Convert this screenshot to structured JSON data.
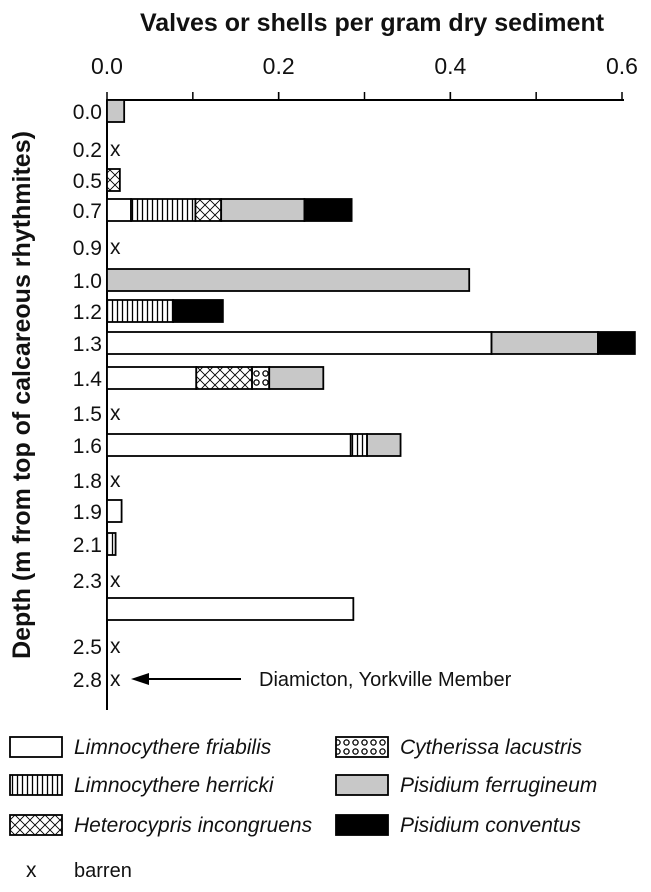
{
  "chart_data": {
    "type": "bar",
    "stacked": true,
    "orientation": "horizontal",
    "title": "Valves or shells per gram dry sediment",
    "ylabel": "Depth (m from top of calcareous rhythmites)",
    "xlim": [
      0,
      0.6
    ],
    "xticks": [
      "0.0",
      "0.2",
      "0.4",
      "0.6"
    ],
    "tick_values": [
      0,
      0.2,
      0.4,
      0.6
    ],
    "series": [
      {
        "name": "Limnocythere friabilis",
        "key": "friabilis",
        "color": "#ffffff"
      },
      {
        "name": "Limnocythere herricki",
        "key": "herricki",
        "color": "#ffffff",
        "pattern": "vertical-lines"
      },
      {
        "name": "Heterocypris incongruens",
        "key": "heterocypris",
        "color": "#ffffff",
        "pattern": "crosshatch"
      },
      {
        "name": "Cytherissa lacustris",
        "key": "cytherissa",
        "color": "#ffffff",
        "pattern": "circles"
      },
      {
        "name": "Pisidium ferrugineum",
        "key": "ferrugineum",
        "color": "#c8c8c8"
      },
      {
        "name": "Pisidium conventus",
        "key": "conventus",
        "color": "#000000"
      }
    ],
    "rows": [
      {
        "depth": "0.0",
        "segments": [
          {
            "s": "ferrugineum",
            "v": 0.02
          }
        ]
      },
      {
        "depth": "0.2",
        "barren": true,
        "segments": []
      },
      {
        "depth": "0.5",
        "segments": [
          {
            "s": "heterocypris",
            "v": 0.015
          }
        ]
      },
      {
        "depth": "0.7",
        "segments": [
          {
            "s": "friabilis",
            "v": 0.028
          },
          {
            "s": "herricki",
            "v": 0.075
          },
          {
            "s": "heterocypris",
            "v": 0.03
          },
          {
            "s": "ferrugineum",
            "v": 0.097
          },
          {
            "s": "conventus",
            "v": 0.055
          }
        ]
      },
      {
        "depth": "0.9",
        "barren": true,
        "segments": []
      },
      {
        "depth": "1.0",
        "segments": [
          {
            "s": "ferrugineum",
            "v": 0.422
          }
        ]
      },
      {
        "depth": "1.2",
        "segments": [
          {
            "s": "herricki",
            "v": 0.077
          },
          {
            "s": "conventus",
            "v": 0.058
          }
        ]
      },
      {
        "depth": "1.3",
        "segments": [
          {
            "s": "friabilis",
            "v": 0.448
          },
          {
            "s": "ferrugineum",
            "v": 0.124
          },
          {
            "s": "conventus",
            "v": 0.043
          }
        ]
      },
      {
        "depth": "1.4",
        "segments": [
          {
            "s": "friabilis",
            "v": 0.104
          },
          {
            "s": "heterocypris",
            "v": 0.065
          },
          {
            "s": "cytherissa",
            "v": 0.02
          },
          {
            "s": "ferrugineum",
            "v": 0.063
          }
        ]
      },
      {
        "depth": "1.5",
        "barren": true,
        "segments": []
      },
      {
        "depth": "1.6",
        "segments": [
          {
            "s": "friabilis",
            "v": 0.284
          },
          {
            "s": "herricki",
            "v": 0.019
          },
          {
            "s": "ferrugineum",
            "v": 0.039
          }
        ]
      },
      {
        "depth": "1.8",
        "barren": true,
        "segments": []
      },
      {
        "depth": "1.9",
        "segments": [
          {
            "s": "friabilis",
            "v": 0.017
          }
        ]
      },
      {
        "depth": "2.1",
        "segments": [
          {
            "s": "herricki",
            "v": 0.01
          }
        ]
      },
      {
        "depth": "2.3",
        "barren": true,
        "segments": []
      },
      {
        "depth": "",
        "segments": [
          {
            "s": "friabilis",
            "v": 0.287
          }
        ]
      },
      {
        "depth": "2.5",
        "barren": true,
        "segments": []
      },
      {
        "depth": "2.8",
        "barren": true,
        "segments": []
      }
    ],
    "barren_marker": "x",
    "annotation": {
      "text": "Diamicton, Yorkville Member",
      "row": "2.8"
    },
    "legend": {
      "placement": "bottom",
      "barren_symbol": "x",
      "barren_label": "barren"
    }
  }
}
